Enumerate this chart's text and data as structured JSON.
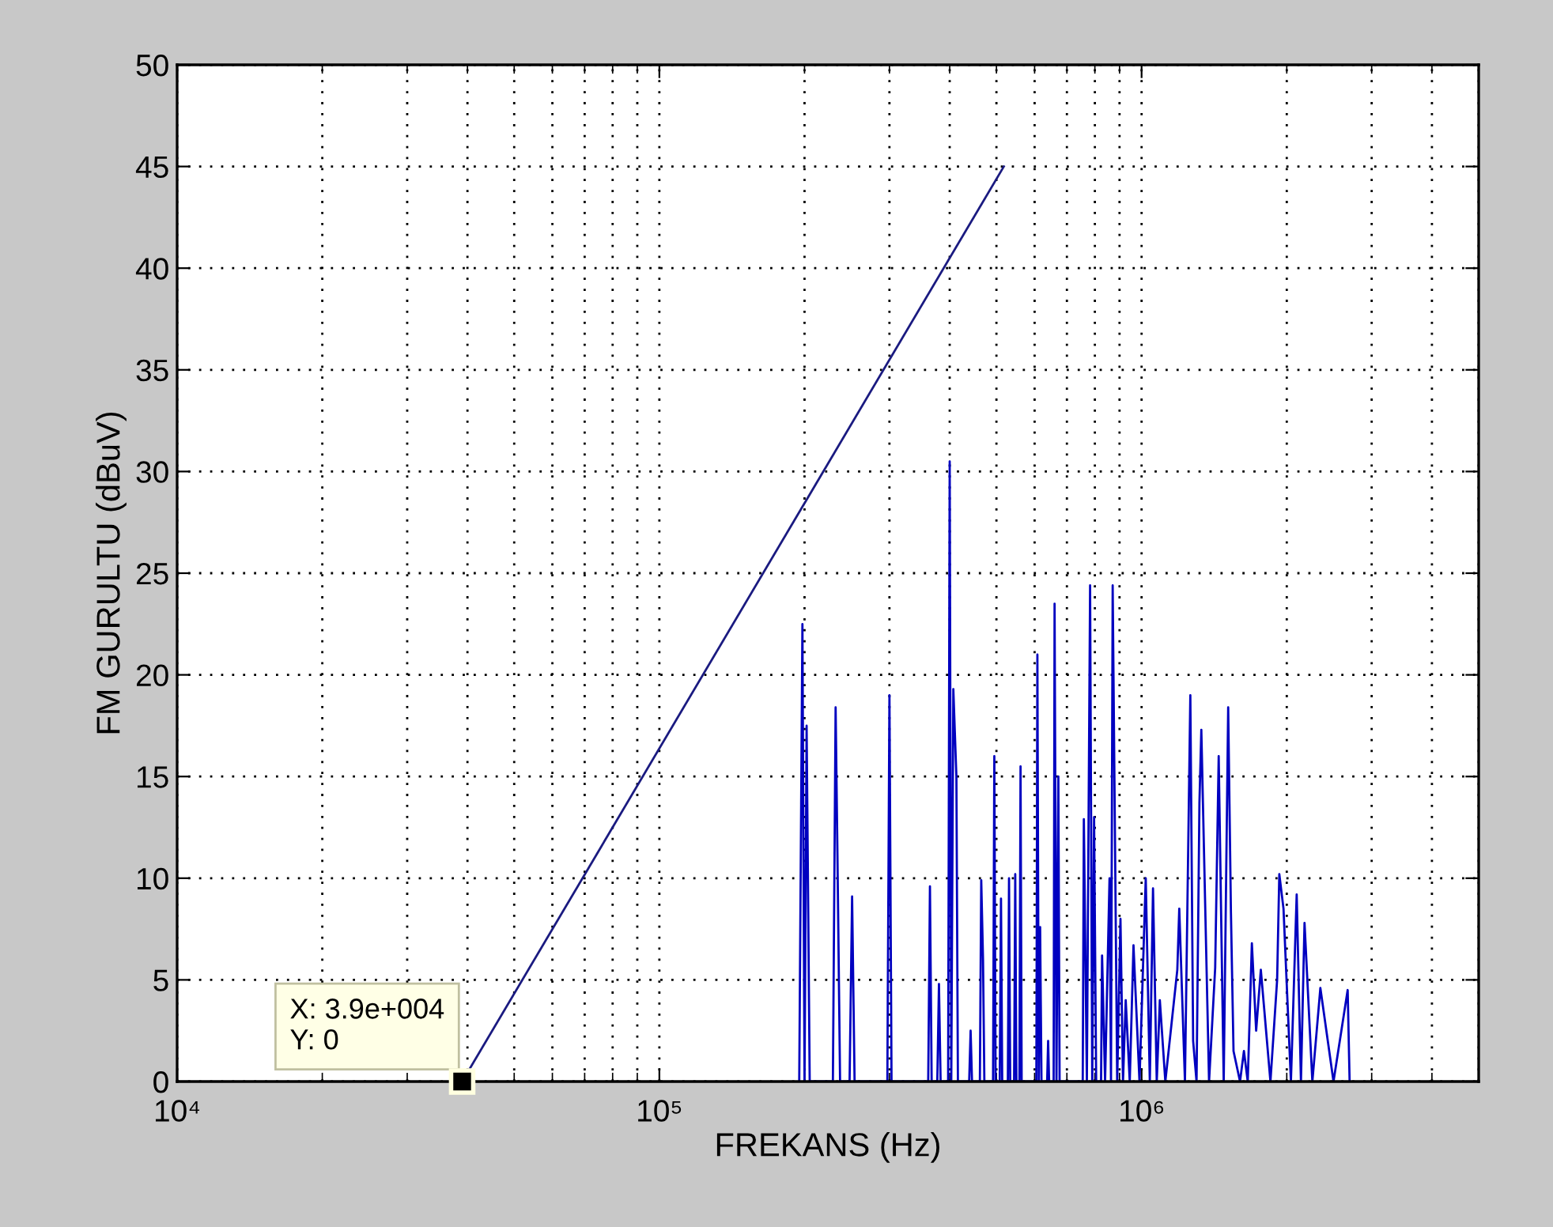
{
  "chart_data": {
    "type": "line",
    "xlabel": "FREKANS (Hz)",
    "ylabel": "FM GURULTU (dBuV)",
    "log": "x",
    "grid": true,
    "line_style": "solid",
    "xlim": [
      10000,
      5000000
    ],
    "xticks": [
      {
        "value": 10000,
        "label": "10⁴"
      },
      {
        "value": 100000,
        "label": "10⁵"
      },
      {
        "value": 1000000,
        "label": "10⁶"
      }
    ],
    "ylim": [
      0,
      50
    ],
    "yticks": [
      0,
      5,
      10,
      15,
      20,
      25,
      30,
      35,
      40,
      45,
      50
    ],
    "annotations": [
      {
        "text": "X: 3.9e+004\nY: 0",
        "x": 39000,
        "y": 0
      }
    ],
    "series": [
      {
        "color": "#1a1a80",
        "x": [
          39000,
          518000
        ],
        "values": [
          0,
          45
        ]
      },
      {
        "color": "#0000c0",
        "x": [
          195000,
          198000,
          200000,
          202000,
          205000,
          229000,
          232000,
          234000,
          237000,
          248000,
          251000,
          254000,
          297000,
          300000,
          303000,
          361000,
          364000,
          367000,
          377000,
          380000,
          383000,
          397000,
          400000,
          403000,
          407000,
          413000,
          416000,
          439000,
          442000,
          445000,
          462000,
          465000,
          469000,
          472000,
          492000,
          495000,
          498000,
          508000,
          511000,
          514000,
          528000,
          531000,
          534000,
          544000,
          547000,
          550000,
          558000,
          561000,
          564000,
          605000,
          608000,
          612000,
          616000,
          620000,
          637000,
          640000,
          643000,
          657000,
          660000,
          666000,
          672000,
          676000,
          755000,
          759000,
          770000,
          782000,
          790000,
          797000,
          805000,
          824000,
          828000,
          840000,
          858000,
          864000,
          871000,
          890000,
          904000,
          915000,
          927000,
          945000,
          962000,
          990000,
          1020000,
          1040000,
          1056000,
          1075000,
          1091000,
          1120000,
          1186000,
          1197000,
          1230000,
          1262000,
          1279000,
          1300000,
          1318000,
          1330000,
          1380000,
          1421000,
          1445000,
          1480000,
          1512000,
          1532000,
          1551000,
          1600000,
          1630000,
          1660000,
          1693000,
          1728000,
          1767000,
          1850000,
          1910000,
          1930000,
          1969000,
          2040000,
          2097000,
          2140000,
          2177000,
          2260000,
          2348000,
          2500000,
          2675000,
          2700000
        ],
        "values": [
          0,
          22.5,
          0,
          17.5,
          0,
          0,
          18.4,
          11.3,
          0,
          0,
          9.1,
          0,
          0,
          19.0,
          0,
          0,
          9.6,
          0,
          0,
          4.8,
          0,
          0,
          30.5,
          0,
          19.3,
          15,
          0,
          0,
          2.5,
          0,
          0,
          9.9,
          6,
          0,
          0,
          16,
          0,
          0,
          9,
          0,
          0,
          10,
          0,
          0,
          10.2,
          0,
          0,
          15.5,
          0,
          0,
          21,
          0,
          7.6,
          0,
          0,
          2,
          0,
          0,
          23.5,
          0,
          15,
          0,
          0,
          12.9,
          0,
          24.4,
          0,
          13,
          0,
          0,
          6.2,
          0,
          10,
          0,
          24.4,
          0,
          8,
          0,
          4,
          0,
          6.7,
          0,
          10,
          0,
          9.5,
          0,
          4,
          0,
          5.5,
          8.5,
          0,
          19,
          2,
          0,
          13.7,
          17.3,
          0,
          5.6,
          16,
          0,
          18.4,
          8.3,
          1.5,
          0,
          1.5,
          0,
          6.8,
          2.5,
          5.5,
          0,
          5,
          10.2,
          8.5,
          0,
          9.2,
          0,
          7.8,
          0,
          4.6,
          0,
          4.5,
          0
        ]
      }
    ]
  }
}
